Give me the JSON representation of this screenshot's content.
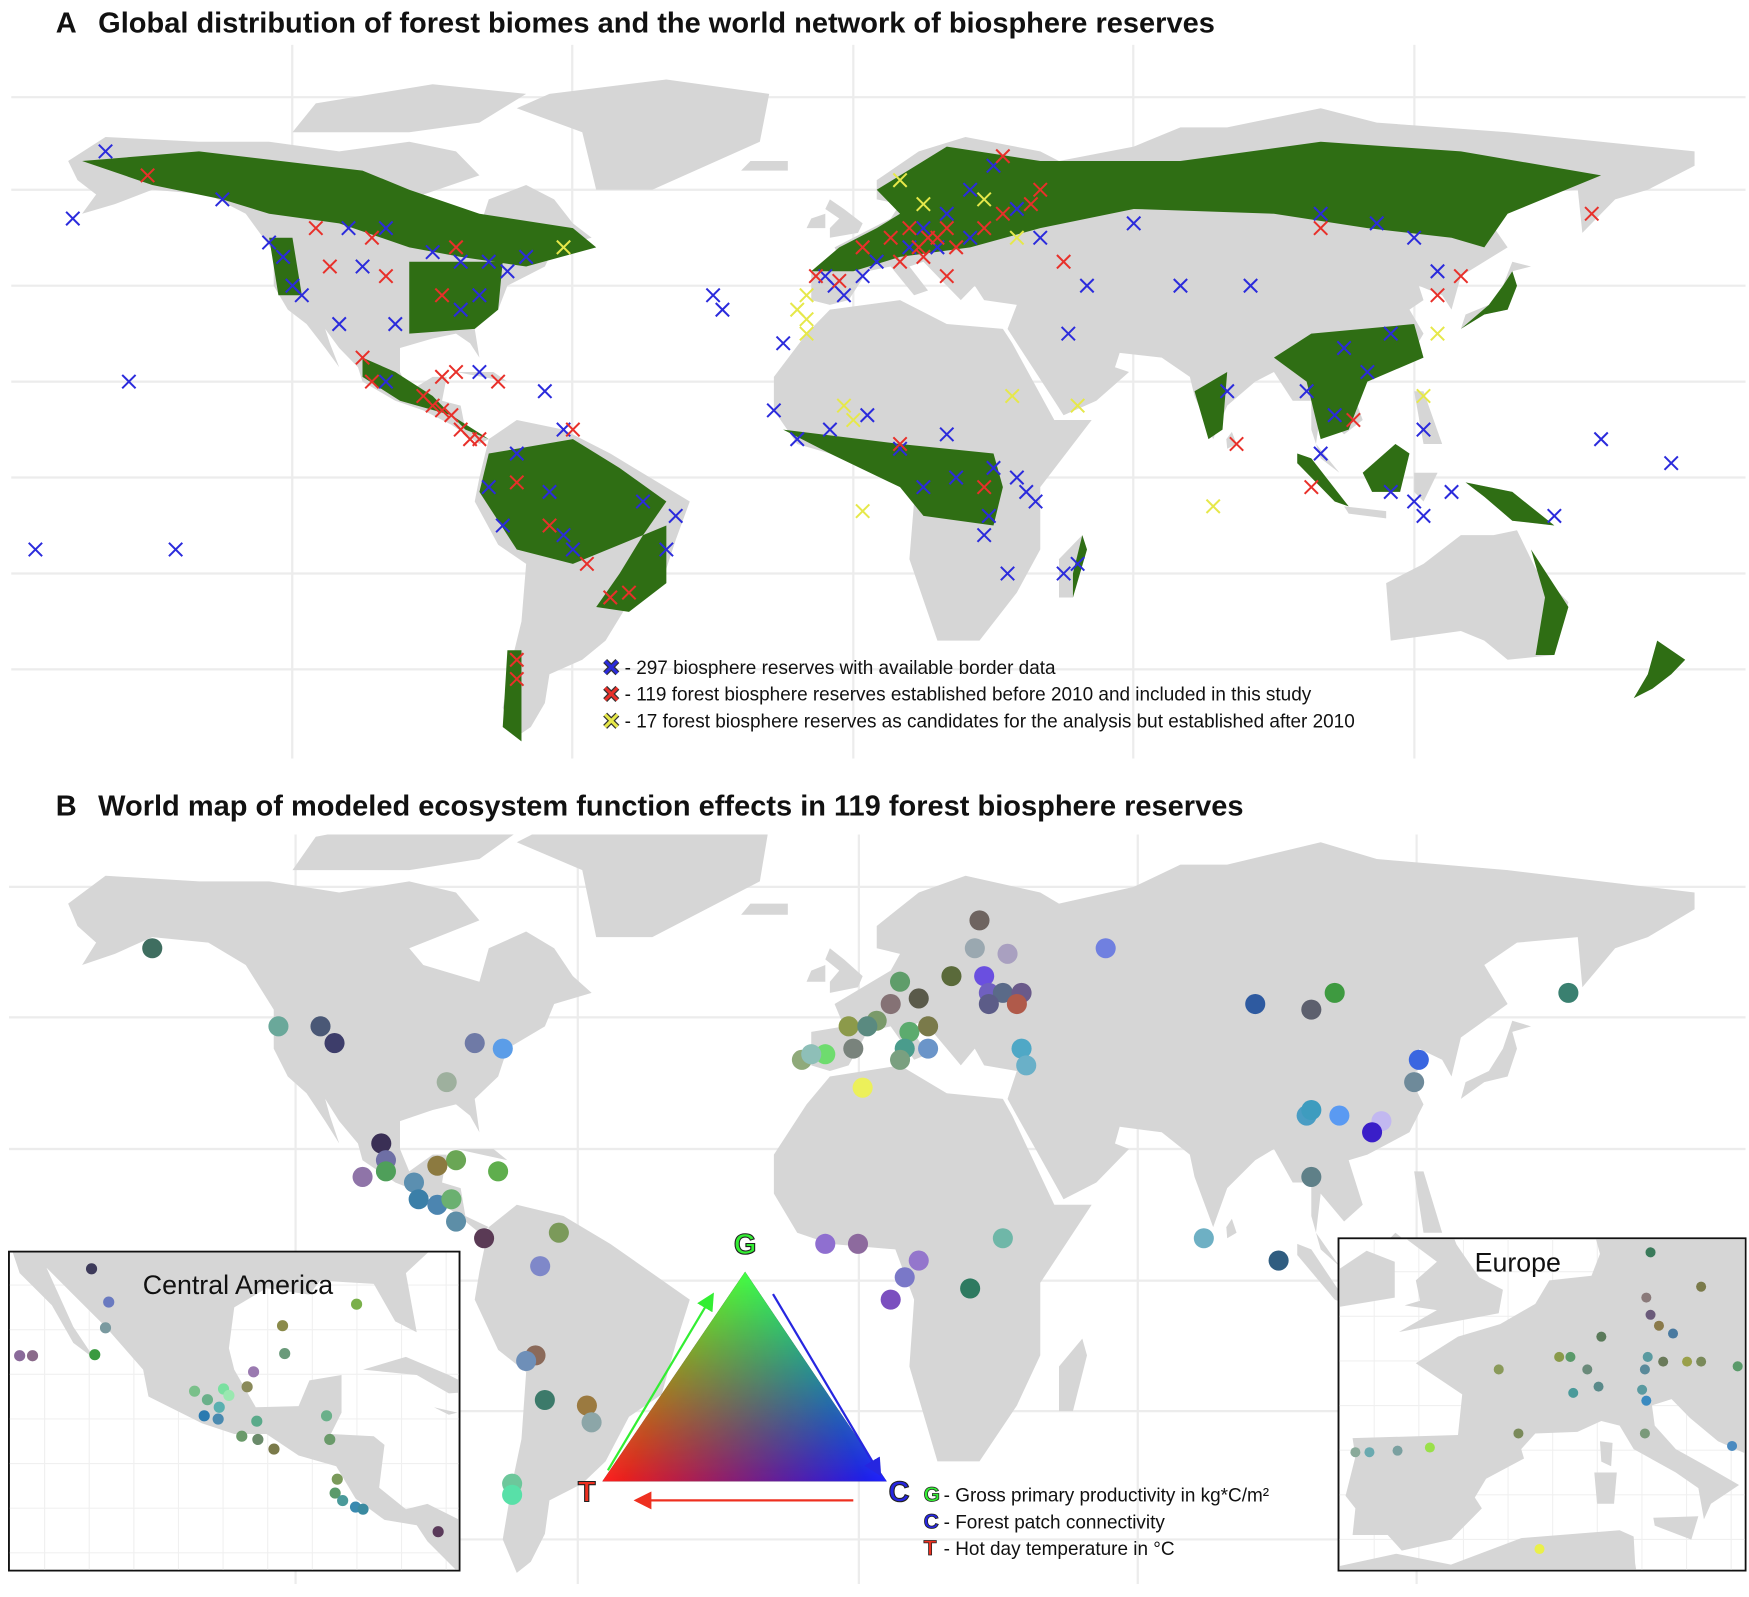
{
  "panel_a": {
    "label": "A",
    "title": "Global distribution of forest biomes and the world network of biosphere reserves",
    "groups": [
      {
        "legend": "- 297 biosphere reserves with available border data",
        "color": "#2b2bdc",
        "lon": [
          -160,
          -167,
          -135,
          -108,
          -100,
          -125,
          -122,
          -120,
          -118,
          -105,
          -90,
          -84,
          -78,
          -70,
          -74,
          -80,
          -84,
          -98,
          -110,
          -155,
          -145,
          -100,
          -80,
          -66,
          -62,
          -72,
          -65,
          -75,
          -62,
          -45,
          -40,
          -38,
          -60,
          -78,
          -30,
          -28,
          -15,
          -17,
          -12,
          -5,
          3,
          10,
          15,
          22,
          30,
          35,
          37,
          39,
          45,
          48,
          29,
          33,
          20,
          46,
          28,
          2,
          -4,
          -2,
          -6,
          5,
          12,
          15,
          20,
          25,
          30,
          25,
          18,
          35,
          40,
          60,
          50,
          70,
          85,
          80,
          100,
          112,
          120,
          125,
          115,
          105,
          110,
          97,
          100,
          103,
          115,
          120,
          122,
          122,
          128,
          150,
          160,
          175,
          -175
        ],
        "lat": [
          68,
          54,
          58,
          52,
          52,
          49,
          46,
          40,
          38,
          44,
          47,
          45,
          45,
          46,
          43,
          38,
          35,
          32,
          32,
          20,
          -15,
          20,
          22,
          18,
          10,
          5,
          -3,
          -10,
          -12,
          -5,
          -15,
          -8,
          -15,
          -2,
          38,
          35,
          28,
          14,
          8,
          10,
          13,
          6,
          -2,
          0,
          2,
          0,
          -3,
          -5,
          -20,
          -18,
          -8,
          -20,
          9,
          30,
          -12,
          42,
          40,
          38,
          42,
          45,
          48,
          52,
          55,
          60,
          65,
          50,
          48,
          56,
          50,
          53,
          40,
          40,
          40,
          18,
          55,
          53,
          50,
          43,
          30,
          27,
          22,
          18,
          5,
          13,
          -3,
          -5,
          10,
          -8,
          -3,
          -8,
          8,
          3,
          -15
        ]
      },
      {
        "legend": "- 119 forest biosphere reserves established before 2010 and included in this study",
        "color": "#e8302a",
        "lon": [
          -151,
          -115,
          -112,
          -103,
          -85,
          -88,
          -100,
          -105,
          -103,
          -92,
          -90,
          -88,
          -86,
          -84,
          -80,
          -76,
          -85,
          -65,
          -72,
          -57,
          -52,
          -48,
          -72,
          -72,
          -8,
          -3,
          2,
          8,
          12,
          14,
          16,
          18,
          20,
          15,
          10,
          22,
          28,
          32,
          38,
          40,
          32,
          45,
          20,
          100,
          130,
          125,
          158,
          82,
          98,
          107,
          -60,
          -82,
          -88,
          10,
          28
        ],
        "lat": [
          63,
          52,
          44,
          50,
          48,
          38,
          42,
          25,
          20,
          17,
          15,
          14,
          13,
          10,
          8,
          20,
          22,
          -10,
          -1,
          -18,
          -25,
          -24,
          -38,
          -42,
          42,
          41,
          48,
          50,
          52,
          48,
          50,
          50,
          52,
          46,
          45,
          48,
          52,
          55,
          57,
          60,
          67,
          45,
          42,
          52,
          42,
          38,
          55,
          7,
          -2,
          12,
          10,
          8,
          21,
          7,
          -2
        ]
      },
      {
        "legend": "- 17 forest biosphere reserves as candidates for the analysis but established after 2010",
        "color": "#e6e84a",
        "lon": [
          -62,
          -10,
          -12,
          -10,
          10,
          15,
          35,
          28,
          48,
          34,
          0,
          -2,
          2,
          77,
          125,
          122,
          -10
        ],
        "lat": [
          48,
          30,
          35,
          33,
          62,
          57,
          50,
          58,
          15,
          17,
          12,
          15,
          -7,
          -6,
          30,
          17,
          38
        ]
      }
    ]
  },
  "panel_b": {
    "label": "B",
    "title": "World map of modeled ecosystem function effects in 119 forest biosphere reserves",
    "points": {
      "lon": [
        -150,
        -123,
        -114,
        -111,
        -81,
        -75,
        -87,
        -101,
        -100,
        -105,
        -100,
        -85,
        -89,
        -76,
        -94,
        -93,
        -89,
        -86,
        -85,
        -79,
        -63,
        -67,
        -68,
        -70,
        -66,
        -57,
        -56,
        -73,
        -73,
        -6,
        1,
        14,
        11,
        8,
        32,
        25,
        75,
        91,
        98,
        97,
        98,
        104,
        113,
        111,
        121,
        120,
        86,
        98,
        103,
        153,
        54,
        27,
        26,
        33,
        21,
        28,
        29,
        32,
        36,
        35,
        29,
        10,
        14,
        8,
        5,
        -1,
        3,
        12,
        16,
        11,
        16,
        0,
        -11,
        -6,
        -9,
        10,
        2,
        36,
        37
      ],
      "lat": [
        58,
        44,
        44,
        41,
        41,
        40,
        34,
        23,
        20,
        17,
        18,
        20,
        19,
        18,
        16,
        13,
        12,
        13,
        9,
        6,
        7,
        1,
        -15,
        -16,
        -23,
        -24,
        -27,
        -38,
        -40,
        5,
        5,
        2,
        -1,
        -5,
        6,
        -3,
        6,
        2,
        17,
        28,
        29,
        28,
        27,
        25,
        38,
        34,
        48,
        47,
        50,
        50,
        58,
        63,
        58,
        57,
        53,
        53,
        50,
        50,
        50,
        48,
        48,
        52,
        49,
        48,
        45,
        44,
        44,
        43,
        44,
        40,
        40,
        40,
        38,
        39,
        39,
        38,
        33,
        40,
        37
      ],
      "colors": [
        "#3f6e60",
        "#6aa89a",
        "#4a5876",
        "#3d3d6a",
        "#6f7aa6",
        "#5b9de8",
        "#9eb09e",
        "#3a2f55",
        "#6e6fa5",
        "#8f74a8",
        "#4f9f5a",
        "#6aa655",
        "#8c7a40",
        "#5fae4d",
        "#5b8fb0",
        "#3b7fa8",
        "#4c85b0",
        "#6bb070",
        "#5d8ea7",
        "#5a3a55",
        "#7b9a5a",
        "#7f88c9",
        "#8b6a5a",
        "#6e8fb8",
        "#3c7a6a",
        "#9b7a40",
        "#8ca6a8",
        "#6dc79b",
        "#58e0a8",
        "#8f6fd0",
        "#8d6a9e",
        "#9476cc",
        "#7a78c8",
        "#7b4fbf",
        "#6fb7a8",
        "#2e7a60",
        "#6eb0c4",
        "#305d80",
        "#5f8088",
        "#4a9dc4",
        "#3e9cbf",
        "#5a9af2",
        "#c2b8f0",
        "#3a1ec8",
        "#3a66e0",
        "#6e8a9a",
        "#2e5aa0",
        "#5d606e",
        "#3e9a40",
        "#3a8070",
        "#7080e0",
        "#6e6460",
        "#9aa8b0",
        "#a9a0c0",
        "#5a6a3a",
        "#6a4fe0",
        "#7060c0",
        "#5a6a88",
        "#6a5a8a",
        "#b05a4a",
        "#5c5c88",
        "#5f9d6a",
        "#5a5a4a",
        "#857275",
        "#7a9a6a",
        "#8c9a4a",
        "#5a8a80",
        "#5cab6e",
        "#7a7a4a",
        "#4a9c8c",
        "#6b95c9",
        "#79837c",
        "#8faa7a",
        "#6edc6e",
        "#8ebfb8",
        "#7aa080",
        "#ecf05a",
        "#4fa8c6",
        "#6ab0c8"
      ]
    },
    "insets": [
      {
        "title": "Central America",
        "lon": [
          -110.3,
          -108.7,
          -109,
          -110,
          -117,
          -115.8,
          -85.6,
          -92.5,
          -92.3,
          -95.2,
          -95.8,
          -100.7,
          -98,
          -97.5,
          -99.5,
          -98.4,
          -99.8,
          -98.5,
          -94.9,
          -96.3,
          -94.8,
          -93.3,
          -88.4,
          -88.1,
          -87.4,
          -87.6,
          -86.9,
          -85.7,
          -85,
          -78
        ],
        "lat": [
          31.4,
          28.3,
          25.9,
          23.4,
          23.3,
          23.3,
          28.1,
          26.1,
          23.5,
          21.8,
          20.4,
          20,
          20.2,
          19.6,
          19.2,
          18.5,
          17.7,
          17.4,
          17.2,
          15.8,
          15.5,
          14.6,
          17.7,
          15.5,
          11.8,
          10.5,
          9.8,
          9.2,
          9,
          6.9
        ],
        "colors": [
          "#3d3a5a",
          "#6a7ac0",
          "#7a9aa0",
          "#3a9a40",
          "#8a6a9a",
          "#8a6a8a",
          "#7ab04a",
          "#8a8a4a",
          "#6a9a7a",
          "#9a7ab0",
          "#8a8a5a",
          "#7ac08a",
          "#7ae0a0",
          "#9ae8b0",
          "#6ab08a",
          "#5ab0b0",
          "#2a7ab0",
          "#4a8ab0",
          "#5aaa8a",
          "#6a9a6a",
          "#6a8a6a",
          "#7a7a4a",
          "#6ab08a",
          "#6a9a6a",
          "#7a9a5a",
          "#5a9a6a",
          "#4a9a9a",
          "#3a8ab0",
          "#3a8aa0",
          "#5a3a5a"
        ]
      },
      {
        "title": "Europe",
        "lon": [
          12.2,
          15.8,
          11.9,
          12.2,
          12.8,
          13.8,
          8.7,
          5.7,
          6.5,
          7.7,
          12,
          11.8,
          13.1,
          14.8,
          15.8,
          18.4,
          1.4,
          8.5,
          6.7,
          11.6,
          11.9,
          2.8,
          11.8,
          -8.8,
          -7.8,
          -5.8,
          -3.5,
          4.3,
          18
        ],
        "lat": [
          55.1,
          52.9,
          52.2,
          51.1,
          50.4,
          49.9,
          49.7,
          48.4,
          48.4,
          47.6,
          48.4,
          47.6,
          48.1,
          48.1,
          48.1,
          47.8,
          47.6,
          46.5,
          46.1,
          46.3,
          45.6,
          43.5,
          43.5,
          42.3,
          42.3,
          42.4,
          42.6,
          36.1,
          42.7
        ],
        "colors": [
          "#3a7a5a",
          "#7a7a4a",
          "#8a7a7a",
          "#6a5a7a",
          "#8a7a4a",
          "#4a7aa0",
          "#5a7a5a",
          "#8a9a4a",
          "#5a9a6a",
          "#6a8a7a",
          "#5a9aa0",
          "#5a8a9a",
          "#6a7a5a",
          "#9aa04a",
          "#7a8a5a",
          "#5a9a6a",
          "#8a9a5a",
          "#5a8a8a",
          "#4a9a9a",
          "#5a9aa0",
          "#3a8ac0",
          "#7a8a5a",
          "#7a9a7a",
          "#8aaa9a",
          "#6aaab0",
          "#7aa0a0",
          "#9ae04a",
          "#eaf04a",
          "#4a8ac0"
        ]
      }
    ],
    "ternary": {
      "vertices": [
        {
          "letter": "G",
          "color": "#33ee33"
        },
        {
          "letter": "C",
          "color": "#2626e0"
        },
        {
          "letter": "T",
          "color": "#ee3020"
        }
      ],
      "legend": [
        {
          "letter": "G",
          "color": "#33ee33",
          "text": "- Gross primary productivity in kg*C/m²"
        },
        {
          "letter": "C",
          "color": "#2626e0",
          "text": "- Forest patch connectivity"
        },
        {
          "letter": "T",
          "color": "#ee3020",
          "text": "- Hot day temperature in °C"
        }
      ]
    }
  }
}
